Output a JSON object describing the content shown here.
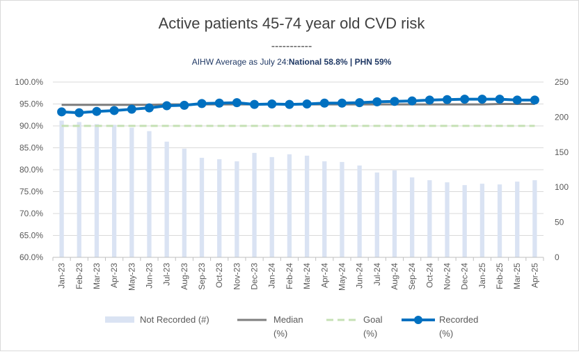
{
  "chart_data": {
    "type": "bar+line",
    "title": "Active patients 45-74 year old CVD risk",
    "title_underline": "-----------",
    "subtitle_prefix": "AIHW Average as July 24:",
    "subtitle_bold": "National 58.8% | PHN 59%",
    "categories": [
      "Jan-23",
      "Feb-23",
      "Mar-23",
      "Apr-23",
      "May-23",
      "Jun-23",
      "Jul-23",
      "Aug-23",
      "Sep-23",
      "Oct-23",
      "Nov-23",
      "Dec-23",
      "Jan-24",
      "Feb-24",
      "Mar-24",
      "Apr-24",
      "May-24",
      "Jun-24",
      "Jul-24",
      "Aug-24",
      "Sep-24",
      "Oct-24",
      "Nov-24",
      "Dec-24",
      "Jan-25",
      "Feb-25",
      "Mar-25",
      "Apr-25"
    ],
    "y_left": {
      "min": 60,
      "max": 100,
      "step": 5,
      "ticks": [
        "60.0%",
        "65.0%",
        "70.0%",
        "75.0%",
        "80.0%",
        "85.0%",
        "90.0%",
        "95.0%",
        "100.0%"
      ]
    },
    "y_right": {
      "min": 0,
      "max": 250,
      "step": 50,
      "ticks": [
        "0",
        "50",
        "100",
        "150",
        "200",
        "250"
      ]
    },
    "gridlines": true,
    "legend_position": "bottom",
    "series": [
      {
        "name": "Not Recorded (#)",
        "type": "bar",
        "axis": "right",
        "color": "#dae3f3",
        "values": [
          195,
          193,
          190,
          189,
          185,
          180,
          165,
          155,
          142,
          140,
          137,
          149,
          143,
          147,
          145,
          137,
          136,
          131,
          121,
          124,
          114,
          110,
          107,
          103,
          105,
          104,
          108,
          110
        ]
      },
      {
        "name": "Median (%)",
        "type": "line",
        "axis": "left",
        "color": "#7f7f7f",
        "values": [
          94.8,
          94.8,
          94.8,
          94.8,
          94.8,
          94.8,
          94.9,
          94.9,
          94.9,
          94.9,
          94.9,
          94.9,
          94.9,
          94.9,
          94.9,
          94.9,
          94.9,
          94.9,
          94.9,
          94.9,
          94.9,
          94.9,
          94.9,
          94.9,
          94.9,
          95.0,
          95.0,
          95.0
        ]
      },
      {
        "name": "Goal (%)",
        "type": "line",
        "axis": "left",
        "color": "#c5e0b4",
        "dashed": true,
        "values": [
          90,
          90,
          90,
          90,
          90,
          90,
          90,
          90,
          90,
          90,
          90,
          90,
          90,
          90,
          90,
          90,
          90,
          90,
          90,
          90,
          90,
          90,
          90,
          90,
          90,
          90,
          90,
          90
        ]
      },
      {
        "name": "Recorded (%)",
        "type": "line",
        "axis": "left",
        "color": "#0070c0",
        "markers": true,
        "values": [
          93.2,
          93.0,
          93.3,
          93.5,
          93.8,
          94.1,
          94.6,
          94.7,
          95.1,
          95.2,
          95.3,
          94.9,
          95.0,
          94.9,
          95.0,
          95.2,
          95.2,
          95.3,
          95.5,
          95.6,
          95.7,
          95.9,
          96.0,
          96.1,
          96.1,
          96.1,
          95.9,
          95.9
        ]
      }
    ],
    "legend": [
      {
        "line1": "Not Recorded (#)",
        "line2": ""
      },
      {
        "line1": "Median",
        "line2": "(%)"
      },
      {
        "line1": "Goal",
        "line2": "(%)"
      },
      {
        "line1": "Recorded",
        "line2": "(%)"
      }
    ]
  }
}
